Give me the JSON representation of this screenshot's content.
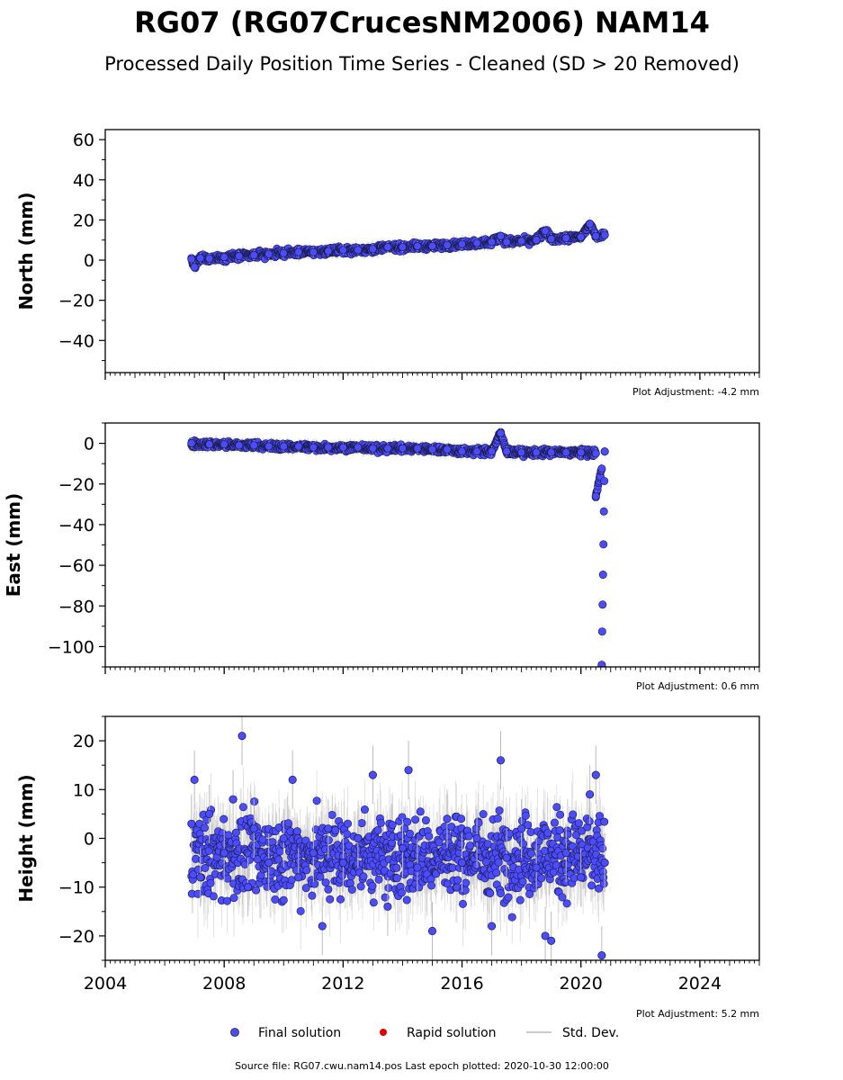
{
  "title": "RG07 (RG07CrucesNM2006) NAM14",
  "subtitle": "Processed Daily Position Time Series - Cleaned (SD > 20 Removed)",
  "footer": "Source file: RG07.cwu.nam14.pos  Last epoch plotted: 2020-10-30 12:00:00",
  "legend": [
    {
      "label": "Final solution",
      "color": "#4b4bff"
    },
    {
      "label": "Rapid solution",
      "color": "#e00000"
    },
    {
      "label": "Std. Dev.",
      "color": "#cccccc"
    }
  ],
  "colors": {
    "final": "#4b4bff",
    "rapid": "#e00000",
    "sd": "#bbbbbb"
  },
  "chart_data": [
    {
      "type": "scatter",
      "ylabel": "North (mm)",
      "adjustment": "Plot Adjustment: -4.2 mm",
      "xlim": [
        2004,
        2026
      ],
      "ylim": [
        -56,
        65
      ],
      "yticks": [
        60,
        40,
        20,
        0,
        -20,
        -40
      ],
      "ytick_labels": [
        "60",
        "40",
        "20",
        "0",
        "−20",
        "−40"
      ],
      "series": [
        {
          "points": [
            [
              2006.9,
              0.5
            ],
            [
              2007.0,
              -3.5
            ],
            [
              2007.2,
              1.0
            ],
            [
              2007.5,
              0.8
            ],
            [
              2008.0,
              1.5
            ],
            [
              2008.5,
              2.0
            ],
            [
              2009.0,
              2.5
            ],
            [
              2009.5,
              3.0
            ],
            [
              2010.0,
              3.5
            ],
            [
              2010.5,
              4.0
            ],
            [
              2011.0,
              4.0
            ],
            [
              2011.5,
              4.5
            ],
            [
              2012.0,
              5.0
            ],
            [
              2012.5,
              5.0
            ],
            [
              2013.0,
              5.5
            ],
            [
              2013.5,
              6.5
            ],
            [
              2014.0,
              6.5
            ],
            [
              2014.5,
              7.0
            ],
            [
              2015.0,
              7.0
            ],
            [
              2015.5,
              7.5
            ],
            [
              2016.0,
              8.0
            ],
            [
              2016.5,
              8.5
            ],
            [
              2017.0,
              9.0
            ],
            [
              2017.3,
              12.0
            ],
            [
              2017.5,
              9.0
            ],
            [
              2018.0,
              9.5
            ],
            [
              2018.5,
              10.0
            ],
            [
              2018.8,
              14.5
            ],
            [
              2019.0,
              10.5
            ],
            [
              2019.5,
              11.0
            ],
            [
              2020.0,
              11.5
            ],
            [
              2020.3,
              18.0
            ],
            [
              2020.5,
              12.0
            ],
            [
              2020.8,
              12.5
            ]
          ]
        }
      ]
    },
    {
      "type": "scatter",
      "ylabel": "East (mm)",
      "adjustment": "Plot Adjustment: 0.6 mm",
      "xlim": [
        2004,
        2026
      ],
      "ylim": [
        -110,
        10
      ],
      "yticks": [
        0,
        -20,
        -40,
        -60,
        -80,
        -100
      ],
      "ytick_labels": [
        "0",
        "−20",
        "−40",
        "−60",
        "−80",
        "−100"
      ],
      "series": [
        {
          "points": [
            [
              2006.9,
              0.0
            ],
            [
              2007.5,
              -0.5
            ],
            [
              2008.0,
              -0.5
            ],
            [
              2008.5,
              -1.0
            ],
            [
              2009.0,
              -1.0
            ],
            [
              2009.5,
              -1.5
            ],
            [
              2010.0,
              -1.5
            ],
            [
              2010.5,
              -1.5
            ],
            [
              2011.0,
              -2.0
            ],
            [
              2011.5,
              -2.0
            ],
            [
              2012.0,
              -2.0
            ],
            [
              2012.5,
              -2.0
            ],
            [
              2013.0,
              -2.5
            ],
            [
              2013.5,
              -2.5
            ],
            [
              2014.0,
              -2.5
            ],
            [
              2014.5,
              -2.5
            ],
            [
              2015.0,
              -3.0
            ],
            [
              2015.5,
              -3.0
            ],
            [
              2016.0,
              -4.0
            ],
            [
              2016.5,
              -4.0
            ],
            [
              2017.0,
              -4.0
            ],
            [
              2017.3,
              5.0
            ],
            [
              2017.5,
              -4.0
            ],
            [
              2018.0,
              -4.5
            ],
            [
              2018.5,
              -4.5
            ],
            [
              2019.0,
              -4.5
            ],
            [
              2019.5,
              -4.5
            ],
            [
              2020.0,
              -4.5
            ],
            [
              2020.5,
              -5.0
            ],
            [
              2020.5,
              -26.0
            ],
            [
              2020.7,
              -12.5
            ],
            [
              2020.8,
              -4.0
            ],
            [
              2020.7,
              -109.0
            ]
          ]
        }
      ]
    },
    {
      "type": "scatter",
      "ylabel": "Height (mm)",
      "adjustment": "Plot Adjustment: 5.2 mm",
      "xlim": [
        2004,
        2026
      ],
      "ylim": [
        -25,
        25
      ],
      "yticks": [
        20,
        10,
        0,
        -10,
        -20
      ],
      "ytick_labels": [
        "20",
        "10",
        "0",
        "−10",
        "−20"
      ],
      "xticks": [
        2004,
        2008,
        2012,
        2016,
        2020,
        2024
      ],
      "xtick_labels": [
        "2004",
        "2008",
        "2012",
        "2016",
        "2020",
        "2024"
      ],
      "series": [
        {
          "points": [
            [
              2006.9,
              3.0
            ],
            [
              2007.0,
              12.0
            ],
            [
              2007.2,
              -8.0
            ],
            [
              2007.5,
              5.0
            ],
            [
              2008.0,
              -3.0
            ],
            [
              2008.3,
              8.0
            ],
            [
              2008.6,
              21.0
            ],
            [
              2008.8,
              -10.0
            ],
            [
              2009.0,
              2.0
            ],
            [
              2009.5,
              -5.0
            ],
            [
              2010.0,
              0.0
            ],
            [
              2010.3,
              12.0
            ],
            [
              2010.5,
              -8.0
            ],
            [
              2011.0,
              -3.0
            ],
            [
              2011.3,
              -18.0
            ],
            [
              2011.5,
              2.0
            ],
            [
              2012.0,
              -5.0
            ],
            [
              2012.5,
              0.0
            ],
            [
              2013.0,
              13.0
            ],
            [
              2013.5,
              -14.0
            ],
            [
              2014.0,
              -2.0
            ],
            [
              2014.2,
              14.0
            ],
            [
              2014.5,
              -6.0
            ],
            [
              2015.0,
              -19.0
            ],
            [
              2015.5,
              4.0
            ],
            [
              2016.0,
              -5.0
            ],
            [
              2016.5,
              0.0
            ],
            [
              2017.0,
              -18.0
            ],
            [
              2017.3,
              16.0
            ],
            [
              2017.5,
              -4.0
            ],
            [
              2018.0,
              2.0
            ],
            [
              2018.5,
              -6.0
            ],
            [
              2018.8,
              -20.0
            ],
            [
              2019.0,
              -21.0
            ],
            [
              2019.5,
              -3.0
            ],
            [
              2020.0,
              -8.0
            ],
            [
              2020.3,
              9.0
            ],
            [
              2020.5,
              13.0
            ],
            [
              2020.7,
              -24.0
            ],
            [
              2020.8,
              -5.0
            ]
          ]
        }
      ]
    }
  ]
}
